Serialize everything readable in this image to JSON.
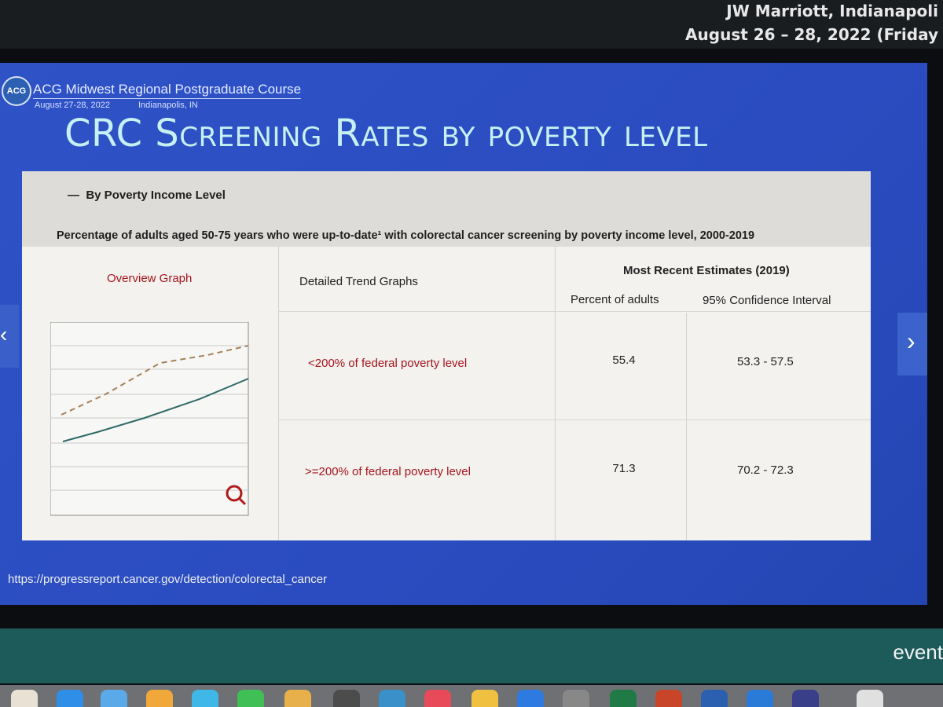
{
  "header": {
    "venue": "JW Marriott, Indianapoli",
    "dates": "August 26 – 28, 2022 (Friday"
  },
  "slide": {
    "logo": "ACG",
    "course": "ACG Midwest Regional Postgraduate Course",
    "course_dates": "August 27-28, 2022",
    "course_place": "Indianapolis, IN",
    "title": "CRC Screening Rates by poverty level",
    "section": "By Poverty Income Level",
    "caption": "Percentage of adults aged 50-75 years who were up-to-date¹ with colorectal cancer screening by poverty income level, 2000-2019",
    "overview": "Overview Graph",
    "detailed": "Detailed Trend Graphs",
    "recent": "Most Recent Estimates (2019)",
    "percent_header": "Percent of adults",
    "ci_header": "95% Confidence Interval",
    "table": {
      "rows": [
        [
          "<200% of federal poverty level",
          55.4,
          "53.3 - 57.5"
        ],
        [
          ">=200% of federal poverty level",
          71.3,
          "70.2 - 72.3"
        ]
      ]
    },
    "url": "https://progressreport.cancer.gov/detection/colorectal_cancer"
  },
  "footer": {
    "brand": "event"
  }
}
